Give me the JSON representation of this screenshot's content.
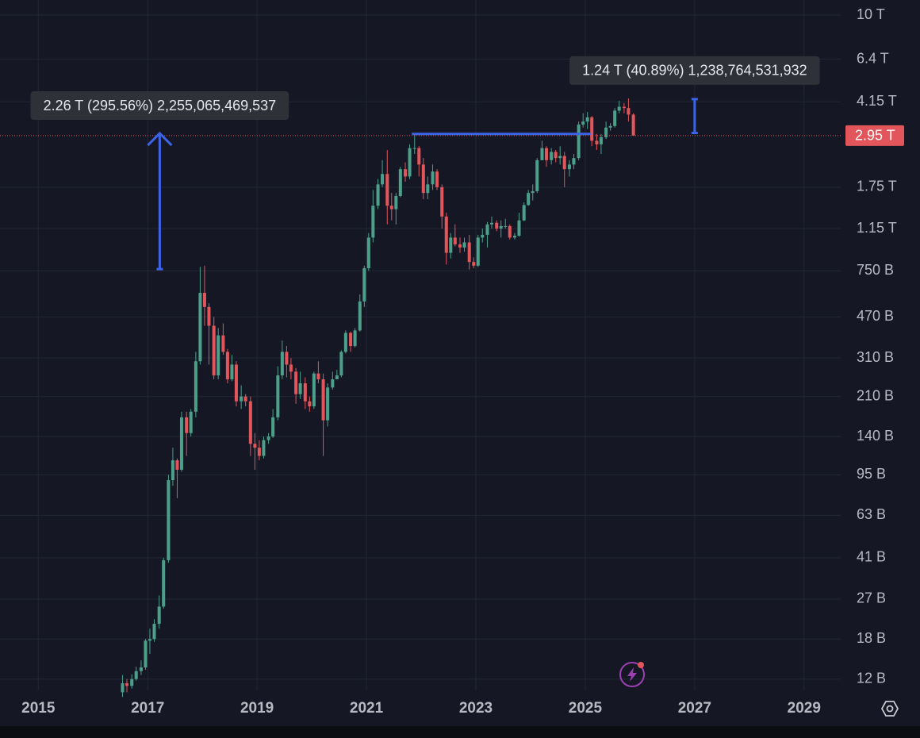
{
  "chart_data": {
    "type": "candlestick",
    "log_scale": true,
    "grid": true,
    "up_color": "#4c9f8a",
    "down_color": "#e2555a",
    "xlim": [
      2014.3,
      2029.67
    ],
    "xticks": [
      2015,
      2017,
      2019,
      2021,
      2023,
      2025,
      2027,
      2029
    ],
    "ylim": [
      10.7,
      11650
    ],
    "yticks": [
      {
        "value": 10000,
        "label": "10 T"
      },
      {
        "value": 6400,
        "label": "6.4 T"
      },
      {
        "value": 4150,
        "label": "4.15 T"
      },
      {
        "value": 1750,
        "label": "1.75 T"
      },
      {
        "value": 1150,
        "label": "1.15 T"
      },
      {
        "value": 750,
        "label": "750 B"
      },
      {
        "value": 470,
        "label": "470 B"
      },
      {
        "value": 310,
        "label": "310 B"
      },
      {
        "value": 210,
        "label": "210 B"
      },
      {
        "value": 140,
        "label": "140 B"
      },
      {
        "value": 95,
        "label": "95 B"
      },
      {
        "value": 63,
        "label": "63 B"
      },
      {
        "value": 41,
        "label": "41 B"
      },
      {
        "value": 27,
        "label": "27 B"
      },
      {
        "value": 18,
        "label": "18 B"
      },
      {
        "value": 12,
        "label": "12 B"
      }
    ],
    "price_line": {
      "value": 2950,
      "label": "2.95 T",
      "color": "#e2555a"
    },
    "x": [
      2016.54,
      2016.62,
      2016.71,
      2016.79,
      2016.88,
      2016.96,
      2017.04,
      2017.12,
      2017.21,
      2017.29,
      2017.38,
      2017.46,
      2017.54,
      2017.62,
      2017.71,
      2017.79,
      2017.88,
      2017.96,
      2018.04,
      2018.12,
      2018.21,
      2018.29,
      2018.38,
      2018.46,
      2018.54,
      2018.62,
      2018.71,
      2018.79,
      2018.88,
      2018.96,
      2019.04,
      2019.12,
      2019.21,
      2019.29,
      2019.38,
      2019.46,
      2019.54,
      2019.62,
      2019.71,
      2019.79,
      2019.88,
      2019.96,
      2020.04,
      2020.12,
      2020.21,
      2020.29,
      2020.38,
      2020.46,
      2020.54,
      2020.62,
      2020.71,
      2020.79,
      2020.88,
      2020.96,
      2021.04,
      2021.12,
      2021.21,
      2021.29,
      2021.38,
      2021.46,
      2021.54,
      2021.62,
      2021.71,
      2021.79,
      2021.88,
      2021.96,
      2022.04,
      2022.12,
      2022.21,
      2022.29,
      2022.38,
      2022.46,
      2022.54,
      2022.62,
      2022.71,
      2022.79,
      2022.88,
      2022.96,
      2023.04,
      2023.12,
      2023.21,
      2023.29,
      2023.38,
      2023.46,
      2023.54,
      2023.62,
      2023.71,
      2023.79,
      2023.88,
      2023.96,
      2024.04,
      2024.12,
      2024.21,
      2024.29,
      2024.38,
      2024.46,
      2024.54,
      2024.62,
      2024.71,
      2024.79,
      2024.88,
      2024.96,
      2025.04,
      2025.12,
      2025.21,
      2025.29,
      2025.38,
      2025.46,
      2025.54,
      2025.62,
      2025.71,
      2025.79,
      2025.88
    ],
    "open": [
      10.5,
      11.5,
      11.2,
      12,
      13,
      13.5,
      17.7,
      18,
      21,
      25,
      40,
      90,
      110,
      100,
      170,
      145,
      180,
      300,
      600,
      520,
      430,
      260,
      390,
      330,
      250,
      290,
      200,
      210,
      200,
      130,
      125,
      115,
      135,
      140,
      170,
      260,
      330,
      290,
      270,
      215,
      240,
      200,
      190,
      265,
      250,
      165,
      230,
      250,
      260,
      330,
      400,
      350,
      410,
      550,
      770,
      1050,
      1450,
      1800,
      2000,
      1450,
      1400,
      1600,
      2100,
      1950,
      2600,
      2600,
      2200,
      1650,
      1800,
      2050,
      1750,
      1300,
      900,
      1050,
      980,
      950,
      1000,
      820,
      790,
      1050,
      1080,
      1200,
      1220,
      1150,
      1180,
      1180,
      1050,
      1070,
      1250,
      1460,
      1650,
      1680,
      2300,
      2600,
      2300,
      2500,
      2350,
      2400,
      2100,
      2200,
      2350,
      3300,
      3400,
      3550,
      2800,
      2700,
      2900,
      3200,
      3250,
      3800,
      3950,
      3900,
      3650
    ],
    "high": [
      12.5,
      12,
      12.6,
      13.6,
      14.5,
      18,
      20,
      22,
      28,
      41,
      95,
      125,
      112,
      180,
      180,
      185,
      330,
      780,
      790,
      540,
      470,
      420,
      440,
      340,
      320,
      300,
      235,
      215,
      210,
      145,
      135,
      140,
      145,
      185,
      285,
      370,
      350,
      310,
      280,
      270,
      255,
      210,
      270,
      300,
      265,
      240,
      270,
      275,
      335,
      410,
      405,
      420,
      590,
      790,
      1100,
      1700,
      1900,
      2300,
      2550,
      1650,
      1650,
      2150,
      2250,
      2700,
      3000,
      2650,
      2350,
      1950,
      2200,
      2100,
      1800,
      1350,
      1100,
      1200,
      1050,
      1050,
      1080,
      860,
      1080,
      1150,
      1230,
      1300,
      1250,
      1250,
      1270,
      1200,
      1100,
      1350,
      1500,
      1700,
      1800,
      2350,
      2800,
      2650,
      2600,
      2550,
      2650,
      2500,
      2300,
      2450,
      3400,
      3700,
      3750,
      3600,
      3000,
      3000,
      3400,
      3350,
      3900,
      4200,
      4100,
      4300,
      3700
    ],
    "low": [
      10,
      10.5,
      10.9,
      11.8,
      12.5,
      13.2,
      15.5,
      17.5,
      20,
      24.5,
      39,
      85,
      75,
      98,
      115,
      140,
      170,
      290,
      430,
      290,
      250,
      250,
      320,
      240,
      245,
      190,
      185,
      190,
      115,
      100,
      110,
      112,
      130,
      138,
      165,
      250,
      255,
      250,
      195,
      205,
      185,
      180,
      185,
      240,
      115,
      155,
      225,
      250,
      255,
      325,
      330,
      345,
      405,
      520,
      750,
      1000,
      1400,
      1750,
      1200,
      1250,
      1200,
      1580,
      1850,
      1900,
      2450,
      1950,
      1550,
      1550,
      1700,
      1700,
      1150,
      800,
      850,
      960,
      900,
      910,
      760,
      770,
      780,
      1000,
      950,
      1150,
      1120,
      1050,
      1150,
      1030,
      1030,
      1060,
      1240,
      1450,
      1530,
      1650,
      2300,
      2150,
      2200,
      2250,
      2200,
      1750,
      1950,
      2100,
      2300,
      3200,
      3150,
      2650,
      2550,
      2450,
      2850,
      3100,
      3200,
      3700,
      3700,
      3400,
      2950
    ],
    "close": [
      11.5,
      11.2,
      12,
      13,
      13.5,
      17.7,
      18,
      21,
      25,
      40,
      90,
      110,
      100,
      170,
      145,
      180,
      300,
      600,
      520,
      430,
      260,
      390,
      330,
      250,
      290,
      200,
      210,
      200,
      130,
      125,
      115,
      135,
      140,
      170,
      260,
      330,
      290,
      270,
      215,
      240,
      200,
      190,
      265,
      250,
      165,
      230,
      250,
      260,
      330,
      400,
      350,
      410,
      550,
      770,
      1050,
      1450,
      1800,
      2000,
      1450,
      1400,
      1600,
      2100,
      1950,
      2600,
      2600,
      2200,
      1650,
      1800,
      2050,
      1750,
      1300,
      900,
      1050,
      980,
      950,
      1000,
      820,
      790,
      1050,
      1080,
      1200,
      1220,
      1150,
      1180,
      1180,
      1050,
      1070,
      1250,
      1460,
      1650,
      1680,
      2300,
      2600,
      2300,
      2500,
      2350,
      2400,
      2100,
      2200,
      2350,
      3300,
      3400,
      3550,
      2800,
      2700,
      2900,
      3200,
      3250,
      3800,
      3950,
      3900,
      3650,
      2950
    ],
    "drawing_color": "#3d63e6",
    "level_line": {
      "x_from": 2021.83,
      "x_to": 2025.1,
      "value": 3000
    },
    "measures": [
      {
        "x": 2017.22,
        "from": 763,
        "to": 3018,
        "label": "2.26 T (295.56%) 2,255,065,469,537"
      },
      {
        "x": 2027.0,
        "from": 3030,
        "to": 4269,
        "label": "1.24 T (40.89%) 1,238,764,531,932"
      }
    ]
  }
}
